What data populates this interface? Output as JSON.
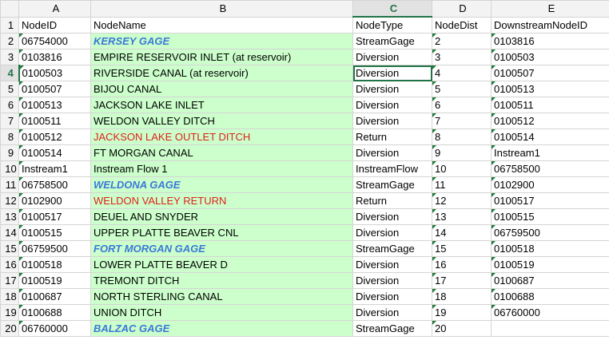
{
  "columns": [
    "",
    "A",
    "B",
    "C",
    "D",
    "E"
  ],
  "selected_column": "C",
  "selected_row": "4",
  "rows": [
    {
      "n": "1",
      "id": "NodeID",
      "name": "NodeName",
      "type": "NodeType",
      "dist": "NodeDist",
      "down": "DownstreamNodeID",
      "style": "header"
    },
    {
      "n": "2",
      "id": "06754000",
      "name": "KERSEY GAGE",
      "type": "StreamGage",
      "dist": "2",
      "down": "0103816",
      "style": "gage"
    },
    {
      "n": "3",
      "id": "0103816",
      "name": "EMPIRE RESERVOIR INLET (at reservoir)",
      "type": "Diversion",
      "dist": "3",
      "down": "0100503",
      "style": "normal"
    },
    {
      "n": "4",
      "id": "0100503",
      "name": "RIVERSIDE CANAL (at reservoir)",
      "type": "Diversion",
      "dist": "4",
      "down": "0100507",
      "style": "normal"
    },
    {
      "n": "5",
      "id": "0100507",
      "name": "BIJOU CANAL",
      "type": "Diversion",
      "dist": "5",
      "down": "0100513",
      "style": "normal"
    },
    {
      "n": "6",
      "id": "0100513",
      "name": "JACKSON LAKE INLET",
      "type": "Diversion",
      "dist": "6",
      "down": "0100511",
      "style": "normal"
    },
    {
      "n": "7",
      "id": "0100511",
      "name": "WELDON VALLEY DITCH",
      "type": "Diversion",
      "dist": "7",
      "down": "0100512",
      "style": "normal"
    },
    {
      "n": "8",
      "id": "0100512",
      "name": "JACKSON LAKE OUTLET DITCH",
      "type": "Return",
      "dist": "8",
      "down": "0100514",
      "style": "return"
    },
    {
      "n": "9",
      "id": "0100514",
      "name": "FT MORGAN CANAL",
      "type": "Diversion",
      "dist": "9",
      "down": "Instream1",
      "style": "normal"
    },
    {
      "n": "10",
      "id": "Instream1",
      "name": "Instream Flow 1",
      "type": "InstreamFlow",
      "dist": "10",
      "down": "06758500",
      "style": "normal"
    },
    {
      "n": "11",
      "id": "06758500",
      "name": "WELDONA GAGE",
      "type": "StreamGage",
      "dist": "11",
      "down": "0102900",
      "style": "gage"
    },
    {
      "n": "12",
      "id": "0102900",
      "name": "WELDON VALLEY RETURN",
      "type": "Return",
      "dist": "12",
      "down": "0100517",
      "style": "return"
    },
    {
      "n": "13",
      "id": "0100517",
      "name": "DEUEL AND SNYDER",
      "type": "Diversion",
      "dist": "13",
      "down": "0100515",
      "style": "normal"
    },
    {
      "n": "14",
      "id": "0100515",
      "name": "UPPER PLATTE BEAVER CNL",
      "type": "Diversion",
      "dist": "14",
      "down": "06759500",
      "style": "normal"
    },
    {
      "n": "15",
      "id": "06759500",
      "name": "FORT MORGAN GAGE",
      "type": "StreamGage",
      "dist": "15",
      "down": "0100518",
      "style": "gage"
    },
    {
      "n": "16",
      "id": "0100518",
      "name": "LOWER PLATTE BEAVER D",
      "type": "Diversion",
      "dist": "16",
      "down": "0100519",
      "style": "normal"
    },
    {
      "n": "17",
      "id": "0100519",
      "name": "TREMONT DITCH",
      "type": "Diversion",
      "dist": "17",
      "down": "0100687",
      "style": "normal"
    },
    {
      "n": "18",
      "id": "0100687",
      "name": "NORTH STERLING CANAL",
      "type": "Diversion",
      "dist": "18",
      "down": "0100688",
      "style": "normal"
    },
    {
      "n": "19",
      "id": "0100688",
      "name": "UNION DITCH",
      "type": "Diversion",
      "dist": "19",
      "down": "06760000",
      "style": "normal"
    },
    {
      "n": "20",
      "id": "06760000",
      "name": "BALZAC GAGE",
      "type": "StreamGage",
      "dist": "20",
      "down": "",
      "style": "gage"
    }
  ]
}
